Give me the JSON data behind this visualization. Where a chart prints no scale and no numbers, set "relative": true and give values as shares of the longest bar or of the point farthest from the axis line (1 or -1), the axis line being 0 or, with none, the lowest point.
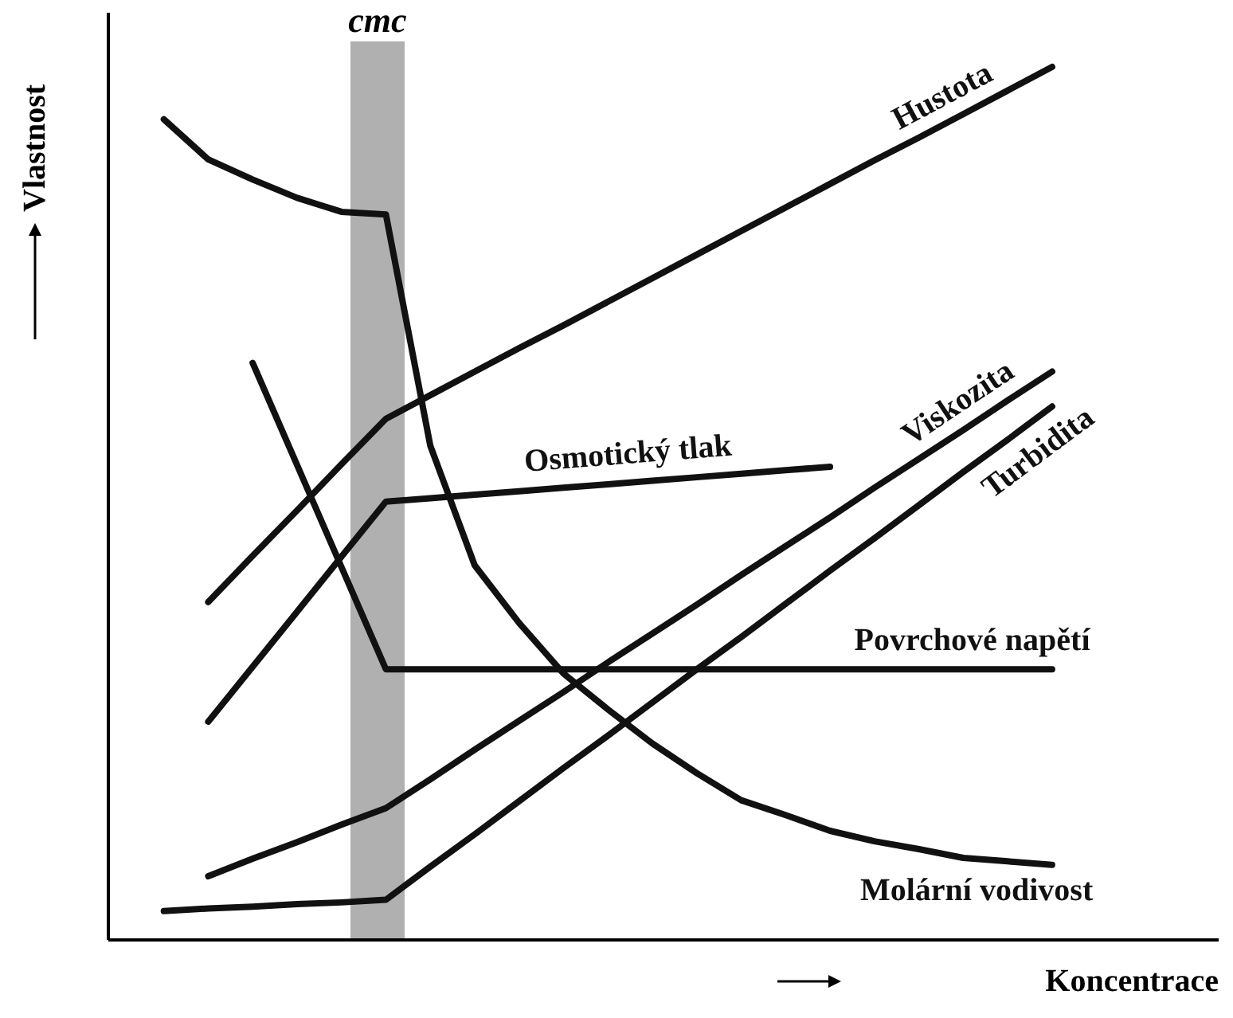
{
  "chart_data": {
    "type": "line",
    "relative": true,
    "xlabel": "Koncentrace",
    "ylabel": "Vlastnost",
    "tick_labels": false,
    "marker": "none",
    "line_style": "solid",
    "categories": [
      null,
      null,
      null,
      null,
      null,
      null,
      null,
      null,
      null,
      null,
      null,
      null,
      null,
      null,
      null,
      null,
      null,
      null,
      null,
      null,
      null
    ],
    "annotations": [
      "cmc"
    ],
    "series": [
      {
        "name": "Hustota",
        "color": "#111111",
        "values": [
          null,
          0.387,
          0.44,
          0.492,
          0.545,
          0.597,
          0.624,
          0.651,
          0.678,
          0.704,
          0.731,
          0.758,
          0.785,
          0.812,
          0.839,
          0.866,
          0.893,
          0.919,
          0.946,
          0.973,
          1.0
        ]
      },
      {
        "name": "Osmotický tlak",
        "color": "#111111",
        "values": [
          null,
          0.25,
          0.313,
          0.376,
          0.439,
          0.502,
          0.506,
          0.51,
          0.514,
          0.518,
          0.522,
          0.526,
          0.53,
          0.534,
          0.538,
          0.542,
          null,
          null,
          null,
          null,
          null
        ]
      },
      {
        "name": "Viskozita",
        "color": "#111111",
        "values": [
          null,
          0.073,
          0.093,
          0.112,
          0.132,
          0.151,
          0.184,
          0.218,
          0.251,
          0.284,
          0.318,
          0.351,
          0.384,
          0.418,
          0.451,
          0.484,
          0.518,
          0.551,
          0.584,
          0.618,
          0.651
        ]
      },
      {
        "name": "Turbidita",
        "color": "#111111",
        "values": [
          0.033,
          0.036,
          0.038,
          0.041,
          0.043,
          0.046,
          0.084,
          0.121,
          0.159,
          0.197,
          0.234,
          0.272,
          0.31,
          0.347,
          0.385,
          0.423,
          0.46,
          0.498,
          0.536,
          0.573,
          0.611
        ]
      },
      {
        "name": "Povrchové napětí",
        "color": "#111111",
        "values": [
          null,
          null,
          0.661,
          0.544,
          0.427,
          0.31,
          0.31,
          0.31,
          0.31,
          0.31,
          0.31,
          0.31,
          0.31,
          0.31,
          0.31,
          0.31,
          0.31,
          0.31,
          0.31,
          0.31,
          0.31
        ]
      },
      {
        "name": "Molární vodivost",
        "color": "#111111",
        "values": [
          0.94,
          0.894,
          0.871,
          0.85,
          0.834,
          0.831,
          0.566,
          0.429,
          0.363,
          0.305,
          0.264,
          0.225,
          0.191,
          0.16,
          0.143,
          0.125,
          0.113,
          0.104,
          0.094,
          0.09,
          0.086
        ]
      }
    ]
  }
}
